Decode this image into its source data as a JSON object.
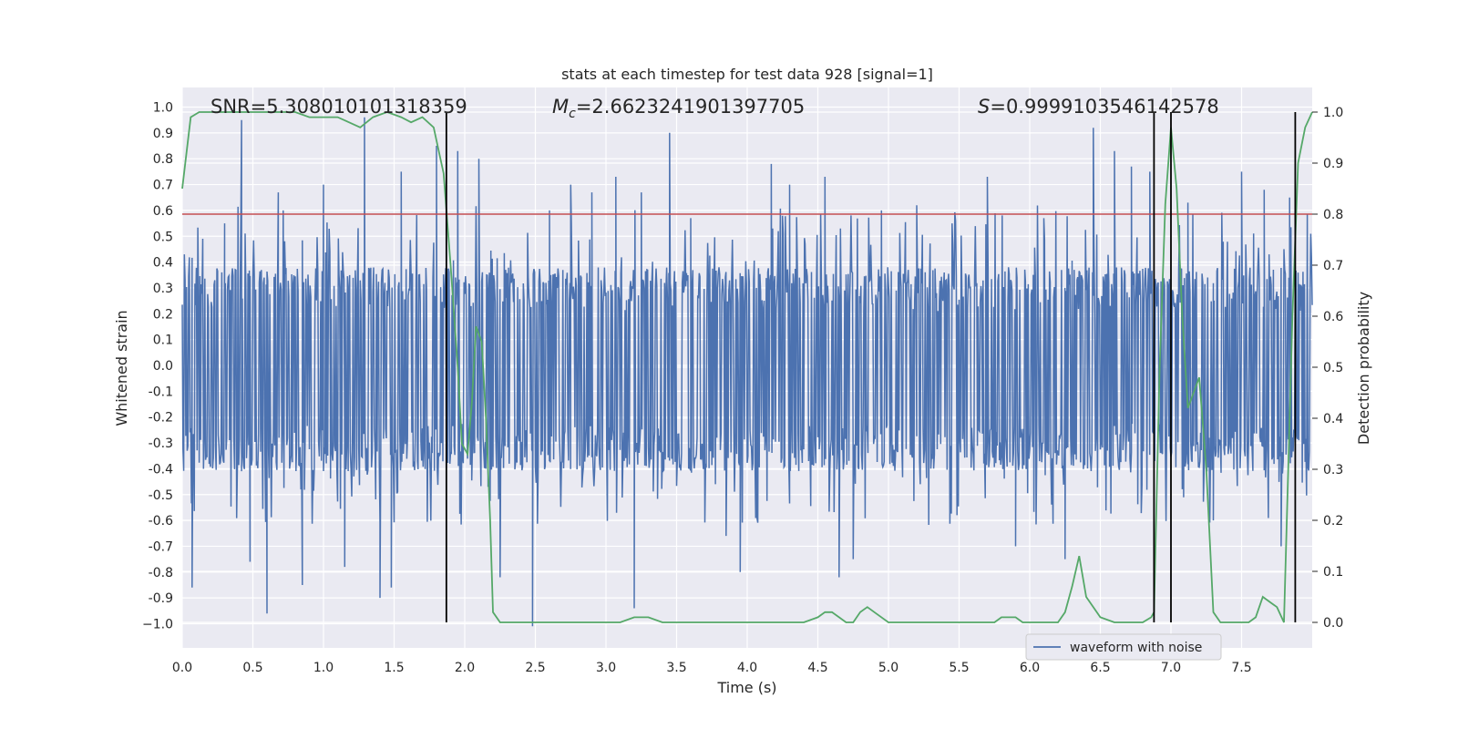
{
  "chart_data": {
    "type": "line",
    "title": "stats at each timestep for test data 928 [signal=1]",
    "xlabel": "Time (s)",
    "ylabel": "Whitened strain",
    "y2label": "Detection probability",
    "xlim": [
      0.0,
      8.0
    ],
    "ylim": [
      -1.09,
      1.03
    ],
    "y2lim": [
      -0.05,
      1.05
    ],
    "x_ticks": [
      "0.0",
      "0.5",
      "1.0",
      "1.5",
      "2.0",
      "2.5",
      "3.0",
      "3.5",
      "4.0",
      "4.5",
      "5.0",
      "5.5",
      "6.0",
      "6.5",
      "7.0",
      "7.5"
    ],
    "y_ticks": [
      "1.0",
      "0.9",
      "0.8",
      "0.7",
      "0.6",
      "0.5",
      "0.4",
      "0.3",
      "0.2",
      "0.1",
      "0.0",
      "-0.1",
      "-0.2",
      "-0.3",
      "-0.4",
      "-0.5",
      "-0.6",
      "-0.7",
      "-0.8",
      "-0.9",
      "−1.0"
    ],
    "y2_ticks": [
      "1.0",
      "0.9",
      "0.8",
      "0.7",
      "0.6",
      "0.5",
      "0.4",
      "0.3",
      "0.2",
      "0.1",
      "0.0"
    ],
    "annotations": {
      "snr": "SNR=5.308010101318359",
      "mc_symbol": "M",
      "mc_sub": "c",
      "mc_value": "=2.6623241901397705",
      "s_symbol": "S",
      "s_value": "=0.9999103546142578"
    },
    "legend": {
      "label": "waveform with noise",
      "placement": "lower-right"
    },
    "threshold_line": {
      "value": 0.8,
      "axis": "y2",
      "color": "#c44e52"
    },
    "vertical_lines": [
      1.87,
      6.88,
      7.0,
      7.88
    ],
    "series": [
      {
        "name": "waveform with noise",
        "color": "#4c72b0",
        "kind": "noise",
        "sample_step": 0.005,
        "envelope_upper": 0.38,
        "envelope_lower": -0.41,
        "peaks": [
          {
            "x": 0.42,
            "y": 0.95
          },
          {
            "x": 0.6,
            "y": -0.96
          },
          {
            "x": 0.07,
            "y": -0.86
          },
          {
            "x": 0.3,
            "y": 0.55
          },
          {
            "x": 0.48,
            "y": -0.76
          },
          {
            "x": 0.68,
            "y": 0.67
          },
          {
            "x": 0.85,
            "y": -0.85
          },
          {
            "x": 1.0,
            "y": 0.7
          },
          {
            "x": 1.15,
            "y": -0.78
          },
          {
            "x": 1.29,
            "y": 0.96
          },
          {
            "x": 1.4,
            "y": -0.9
          },
          {
            "x": 1.48,
            "y": -0.86
          },
          {
            "x": 1.55,
            "y": 0.75
          },
          {
            "x": 1.8,
            "y": 0.85
          },
          {
            "x": 1.95,
            "y": 0.83
          },
          {
            "x": 2.1,
            "y": 0.8
          },
          {
            "x": 2.25,
            "y": -0.82
          },
          {
            "x": 2.48,
            "y": -1.01
          },
          {
            "x": 2.6,
            "y": 0.6
          },
          {
            "x": 2.75,
            "y": 0.7
          },
          {
            "x": 2.9,
            "y": 0.67
          },
          {
            "x": 3.07,
            "y": 0.73
          },
          {
            "x": 3.2,
            "y": -0.94
          },
          {
            "x": 3.25,
            "y": 0.67
          },
          {
            "x": 3.45,
            "y": 0.9
          },
          {
            "x": 3.6,
            "y": 0.57
          },
          {
            "x": 3.85,
            "y": -0.66
          },
          {
            "x": 3.95,
            "y": -0.8
          },
          {
            "x": 4.17,
            "y": 0.78
          },
          {
            "x": 4.3,
            "y": 0.7
          },
          {
            "x": 4.55,
            "y": 0.73
          },
          {
            "x": 4.65,
            "y": -0.82
          },
          {
            "x": 4.75,
            "y": -0.75
          },
          {
            "x": 4.95,
            "y": 0.6
          },
          {
            "x": 5.2,
            "y": 0.62
          },
          {
            "x": 5.45,
            "y": 0.55
          },
          {
            "x": 5.7,
            "y": 0.73
          },
          {
            "x": 5.9,
            "y": -0.7
          },
          {
            "x": 6.1,
            "y": 0.57
          },
          {
            "x": 6.25,
            "y": -0.75
          },
          {
            "x": 6.45,
            "y": 0.92
          },
          {
            "x": 6.6,
            "y": 0.83
          },
          {
            "x": 6.72,
            "y": 0.77
          },
          {
            "x": 6.85,
            "y": 0.75
          },
          {
            "x": 7.12,
            "y": 0.63
          },
          {
            "x": 7.3,
            "y": -0.6
          },
          {
            "x": 7.5,
            "y": 0.75
          },
          {
            "x": 7.66,
            "y": 0.68
          },
          {
            "x": 7.78,
            "y": -0.7
          },
          {
            "x": 7.84,
            "y": 0.65
          }
        ]
      },
      {
        "name": "Detection probability",
        "color": "#55a868",
        "axis": "y2",
        "x": [
          0.0,
          0.06,
          0.12,
          0.2,
          0.3,
          0.4,
          0.5,
          0.6,
          0.7,
          0.8,
          0.9,
          1.0,
          1.1,
          1.18,
          1.26,
          1.35,
          1.45,
          1.55,
          1.62,
          1.7,
          1.78,
          1.85,
          1.9,
          1.95,
          1.98,
          2.02,
          2.05,
          2.08,
          2.12,
          2.15,
          2.18,
          2.2,
          2.25,
          2.35,
          2.5,
          2.6,
          2.7,
          2.8,
          2.9,
          3.0,
          3.1,
          3.2,
          3.25,
          3.3,
          3.4,
          3.5,
          3.6,
          3.7,
          3.8,
          3.9,
          4.0,
          4.1,
          4.2,
          4.3,
          4.4,
          4.5,
          4.55,
          4.6,
          4.65,
          4.7,
          4.75,
          4.8,
          4.85,
          4.9,
          5.0,
          5.1,
          5.2,
          5.3,
          5.4,
          5.5,
          5.6,
          5.65,
          5.7,
          5.75,
          5.8,
          5.85,
          5.9,
          5.95,
          6.0,
          6.1,
          6.2,
          6.25,
          6.3,
          6.35,
          6.4,
          6.5,
          6.6,
          6.7,
          6.8,
          6.86,
          6.88,
          6.92,
          6.96,
          7.0,
          7.04,
          7.08,
          7.12,
          7.16,
          7.2,
          7.25,
          7.3,
          7.35,
          7.4,
          7.5,
          7.55,
          7.6,
          7.65,
          7.7,
          7.75,
          7.8,
          7.83,
          7.86,
          7.9,
          7.95,
          8.0
        ],
        "y": [
          0.85,
          0.99,
          1.0,
          1.0,
          1.0,
          1.0,
          1.0,
          1.0,
          1.0,
          1.0,
          0.99,
          0.99,
          0.99,
          0.98,
          0.97,
          0.99,
          1.0,
          0.99,
          0.98,
          0.99,
          0.97,
          0.88,
          0.7,
          0.5,
          0.35,
          0.33,
          0.43,
          0.58,
          0.55,
          0.4,
          0.2,
          0.02,
          0.0,
          0.0,
          0.0,
          0.0,
          0.0,
          0.0,
          0.0,
          0.0,
          0.0,
          0.01,
          0.01,
          0.01,
          0.0,
          0.0,
          0.0,
          0.0,
          0.0,
          0.0,
          0.0,
          0.0,
          0.0,
          0.0,
          0.0,
          0.01,
          0.02,
          0.02,
          0.01,
          0.0,
          0.0,
          0.02,
          0.03,
          0.02,
          0.0,
          0.0,
          0.0,
          0.0,
          0.0,
          0.0,
          0.0,
          0.0,
          0.0,
          0.0,
          0.01,
          0.01,
          0.01,
          0.0,
          0.0,
          0.0,
          0.0,
          0.02,
          0.07,
          0.13,
          0.05,
          0.01,
          0.0,
          0.0,
          0.0,
          0.01,
          0.02,
          0.5,
          0.82,
          0.97,
          0.85,
          0.6,
          0.42,
          0.45,
          0.48,
          0.3,
          0.02,
          0.0,
          0.0,
          0.0,
          0.0,
          0.01,
          0.05,
          0.04,
          0.03,
          0.0,
          0.3,
          0.6,
          0.9,
          0.97,
          1.0
        ]
      }
    ]
  }
}
